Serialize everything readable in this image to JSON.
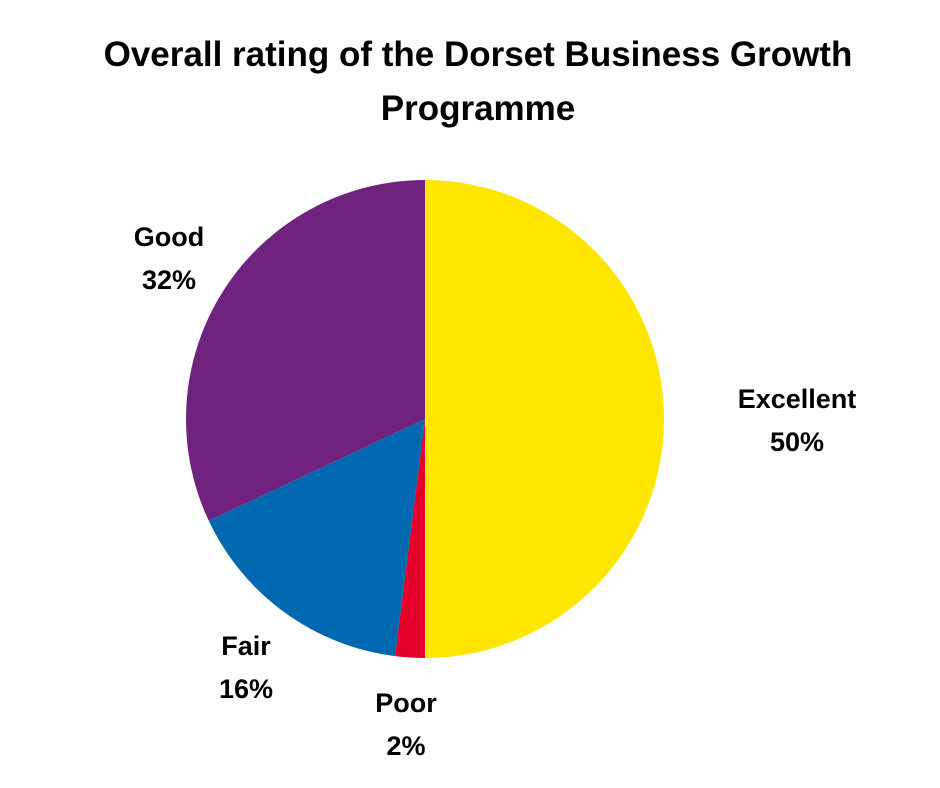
{
  "chart_data": {
    "type": "pie",
    "title": "Overall rating of the Dorset Business Growth Programme",
    "start": "12 o'clock, clockwise",
    "slices": [
      {
        "label": "Excellent",
        "value": 50,
        "value_label": "50%",
        "color": "#FFE600"
      },
      {
        "label": "Poor",
        "value": 2,
        "value_label": "2%",
        "color": "#E4002B"
      },
      {
        "label": "Fair",
        "value": 16,
        "value_label": "16%",
        "color": "#0067B1"
      },
      {
        "label": "Good",
        "value": 32,
        "value_label": "32%",
        "color": "#70237E"
      }
    ]
  }
}
